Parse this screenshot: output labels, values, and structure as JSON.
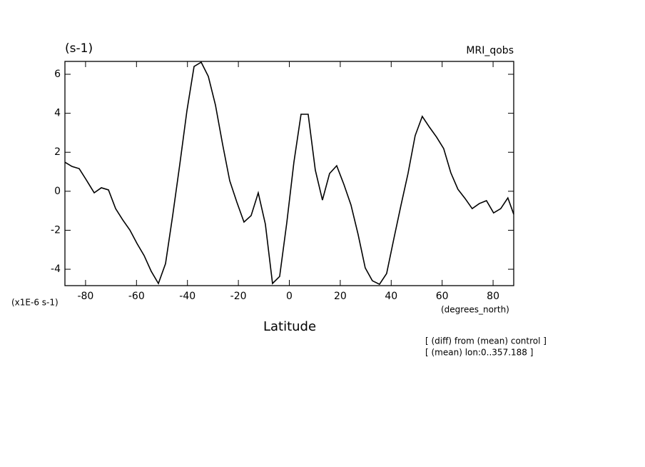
{
  "chart_data": {
    "type": "line",
    "title": "(s-1)",
    "subtitle": "MRI_qobs",
    "y_unit_label": "(x1E-6 s-1)",
    "x_unit_label": "(degrees_north)",
    "x_label": "Latitude",
    "annotations": [
      "[ (diff) from (mean) control ]",
      "[ (mean) lon:0..357.188 ]"
    ],
    "x": [
      -88.1,
      -85.3,
      -82.5,
      -79.7,
      -76.6,
      -73.8,
      -71.0,
      -68.2,
      -65.4,
      -62.6,
      -59.8,
      -57.0,
      -54.2,
      -51.4,
      -48.6,
      -45.8,
      -43.0,
      -40.2,
      -37.4,
      -34.6,
      -31.8,
      -29.0,
      -26.2,
      -23.4,
      -20.6,
      -17.8,
      -15.0,
      -12.2,
      -9.4,
      -6.6,
      -3.8,
      -1.0,
      1.8,
      4.6,
      7.4,
      10.2,
      13.0,
      15.8,
      18.6,
      21.4,
      24.2,
      27.0,
      29.8,
      32.6,
      35.4,
      38.2,
      41.0,
      43.8,
      46.6,
      49.4,
      52.2,
      55.0,
      57.8,
      60.6,
      63.4,
      66.2,
      69.0,
      71.8,
      74.6,
      77.4,
      80.2,
      83.0,
      85.8,
      88.1
    ],
    "values": [
      1.49,
      1.27,
      1.16,
      0.58,
      -0.08,
      0.18,
      0.07,
      -0.89,
      -1.47,
      -1.99,
      -2.68,
      -3.3,
      -4.11,
      -4.73,
      -3.71,
      -1.25,
      1.38,
      4.13,
      6.4,
      6.62,
      5.89,
      4.42,
      2.41,
      0.54,
      -0.56,
      -1.58,
      -1.25,
      -0.08,
      -1.69,
      -4.73,
      -4.37,
      -1.62,
      1.49,
      3.95,
      3.95,
      1.09,
      -0.45,
      0.91,
      1.31,
      0.36,
      -0.7,
      -2.21,
      -3.93,
      -4.59,
      -4.77,
      -4.22,
      -2.46,
      -0.74,
      0.91,
      2.85,
      3.84,
      3.29,
      2.78,
      2.19,
      0.95,
      0.1,
      -0.37,
      -0.89,
      -0.63,
      -0.48,
      -1.11,
      -0.89,
      -0.34,
      -1.18
    ],
    "color": "#000000",
    "xlim": [
      -88.1,
      88.1
    ],
    "xticks": [
      -80,
      -60,
      -40,
      -20,
      0,
      20,
      40,
      60,
      80
    ],
    "ylim": [
      -4.84,
      6.66
    ],
    "yticks": [
      -4,
      -2,
      0,
      2,
      4,
      6
    ]
  }
}
